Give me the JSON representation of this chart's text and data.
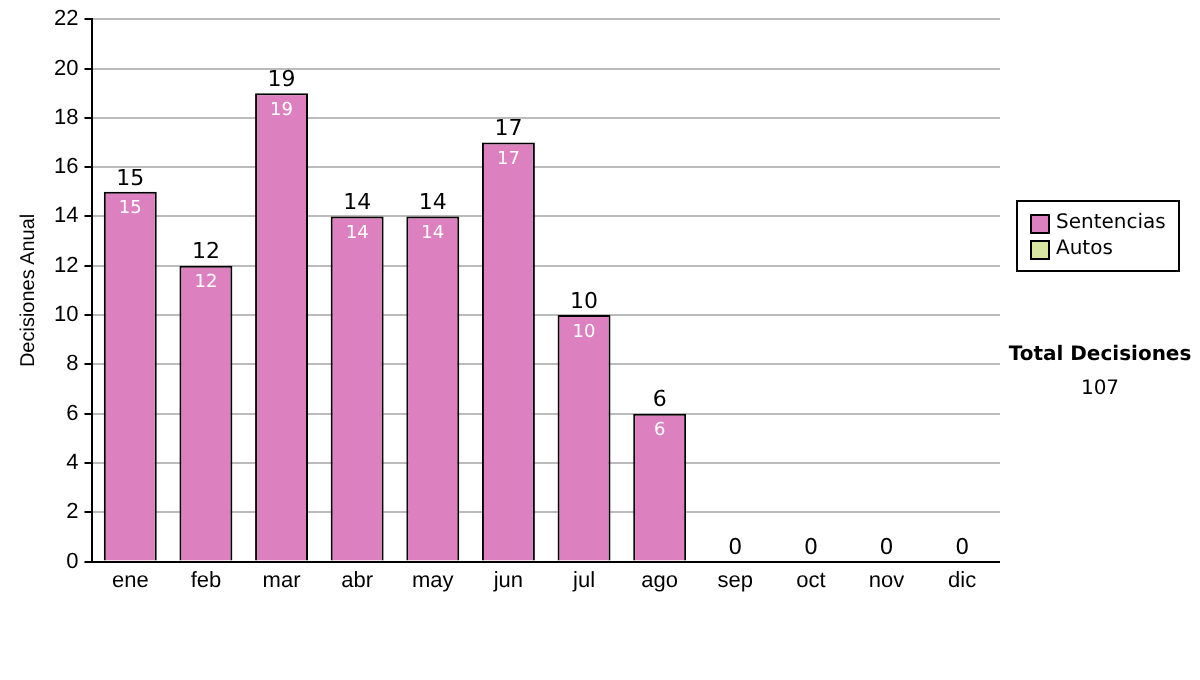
{
  "chart_data": {
    "type": "bar",
    "stacked": true,
    "ylabel": "Decisiones Anual",
    "categories": [
      "ene",
      "feb",
      "mar",
      "abr",
      "may",
      "jun",
      "jul",
      "ago",
      "sep",
      "oct",
      "nov",
      "dic"
    ],
    "series": [
      {
        "name": "Sentencias",
        "color": "#dd80c0",
        "values": [
          15,
          12,
          19,
          14,
          14,
          17,
          10,
          6,
          0,
          0,
          0,
          0
        ],
        "value_labels": [
          "15",
          "12",
          "19",
          "14",
          "14",
          "17",
          "10",
          "6",
          null,
          null,
          null,
          null
        ]
      },
      {
        "name": "Autos",
        "color": "#d8e8a0",
        "values": [
          0,
          0,
          0,
          0,
          0,
          0,
          0,
          0,
          0,
          0,
          0,
          0
        ]
      }
    ],
    "totals": [
      "15",
      "12",
      "19",
      "14",
      "14",
      "17",
      "10",
      "6",
      "0",
      "0",
      "0",
      "0"
    ],
    "ylim": [
      0,
      22
    ],
    "yticks": [
      0,
      2,
      4,
      6,
      8,
      10,
      12,
      14,
      16,
      18,
      20,
      22
    ],
    "grid": "y",
    "legend": "right",
    "annotations": [
      "Total Decisiones",
      "107"
    ]
  }
}
